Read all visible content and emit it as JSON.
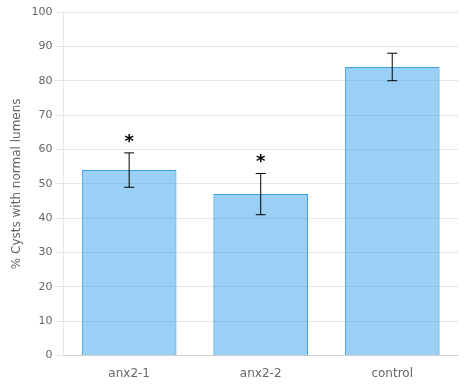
{
  "chart_data": {
    "type": "bar",
    "ylabel": "% Cysts with normal lumens",
    "categories": [
      "anx2-1",
      "anx2-2",
      "control"
    ],
    "values": [
      54,
      47,
      84
    ],
    "errors": [
      5,
      6,
      4
    ],
    "annotations": [
      {
        "text": "*",
        "x": "anx2-1"
      },
      {
        "text": "*",
        "x": "anx2-2"
      }
    ],
    "ylim": [
      0,
      100
    ],
    "yticks": [
      0,
      10,
      20,
      30,
      40,
      50,
      60,
      70,
      80,
      90,
      100
    ],
    "grid": true
  }
}
